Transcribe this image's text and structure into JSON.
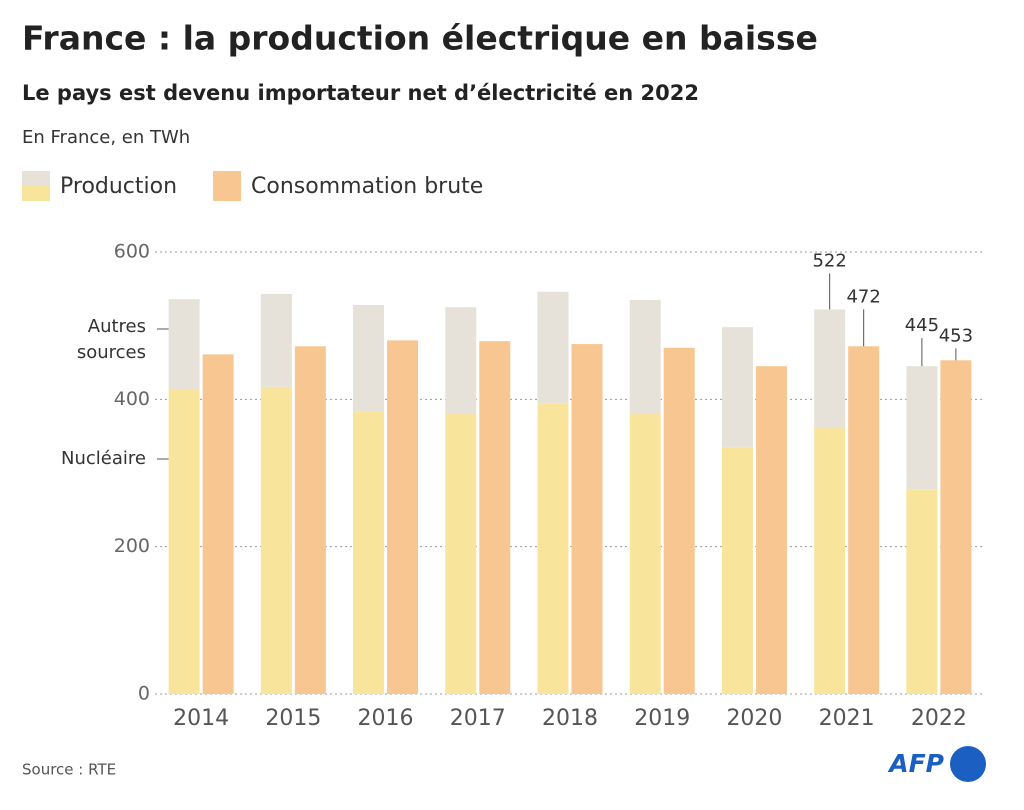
{
  "chart_data": {
    "type": "stacked_grouped_bar",
    "title": "France : la production électrique en baisse",
    "subtitle": "Le pays est devenu importateur net d’électricité en 2022",
    "unit_note": "En France, en TWh",
    "legend": [
      {
        "name": "Production",
        "colors": [
          "#e6e2da",
          "#f9e49c"
        ]
      },
      {
        "name": "Consommation brute",
        "colors": [
          "#f8c691"
        ]
      }
    ],
    "categories": [
      "2014",
      "2015",
      "2016",
      "2017",
      "2018",
      "2019",
      "2020",
      "2021",
      "2022"
    ],
    "series": [
      {
        "name": "Nucléaire",
        "stack": "Production",
        "color": "#f9e49c",
        "values": [
          414,
          417,
          383,
          380,
          394,
          380,
          335,
          361,
          278
        ]
      },
      {
        "name": "Autres sources",
        "stack": "Production",
        "color": "#e6e2da",
        "values": [
          122,
          126,
          145,
          145,
          152,
          155,
          163,
          161,
          167
        ]
      },
      {
        "name": "Consommation brute",
        "stack": "Consommation brute",
        "color": "#f8c691",
        "values": [
          461,
          472,
          480,
          479,
          475,
          470,
          445,
          472,
          453
        ]
      }
    ],
    "annotations": [
      {
        "series": "Production",
        "category": "2021",
        "value": 522
      },
      {
        "series": "Consommation brute",
        "category": "2021",
        "value": 472
      },
      {
        "series": "Production",
        "category": "2022",
        "value": 445
      },
      {
        "series": "Consommation brute",
        "category": "2022",
        "value": 453
      }
    ],
    "ylim": [
      0,
      600
    ],
    "yticks": [
      0,
      200,
      400,
      600
    ],
    "grid": true,
    "source": "Source : RTE",
    "logo": "AFP"
  }
}
